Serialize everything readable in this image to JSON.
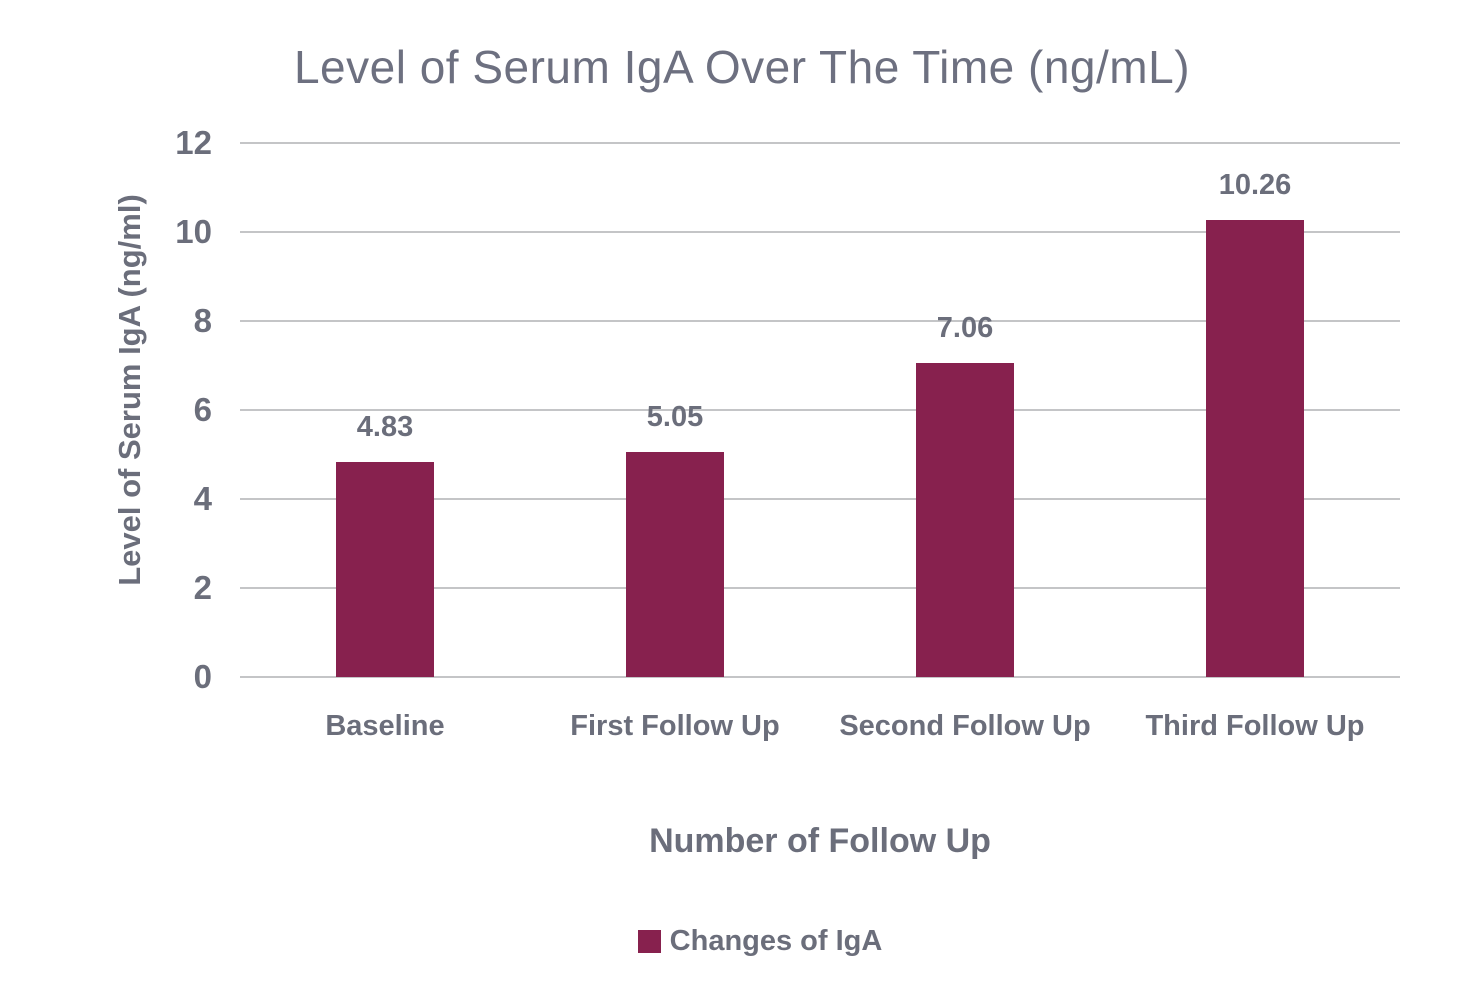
{
  "chart_data": {
    "type": "bar",
    "title": "Level of Serum IgA Over The Time (ng/mL)",
    "xlabel": "Number of Follow Up",
    "ylabel": "Level of Serum IgA (ng/ml)",
    "categories": [
      "Baseline",
      "First Follow Up",
      "Second Follow Up",
      "Third Follow Up"
    ],
    "series": [
      {
        "name": "Changes of IgA",
        "values": [
          4.83,
          5.05,
          7.06,
          10.26
        ],
        "data_labels": [
          "4.83",
          "5.05",
          "7.06",
          "10.26"
        ]
      }
    ],
    "ylim": [
      0,
      12
    ],
    "yticks": [
      0,
      2,
      4,
      6,
      8,
      10,
      12
    ],
    "grid": "horizontal",
    "legend": {
      "position": "bottom",
      "entries": [
        "Changes of IgA"
      ]
    },
    "colors": {
      "bar": "#87214e",
      "text": "#6b6e7b",
      "gridline": "#c4c5c7",
      "background": "#ffffff"
    }
  }
}
